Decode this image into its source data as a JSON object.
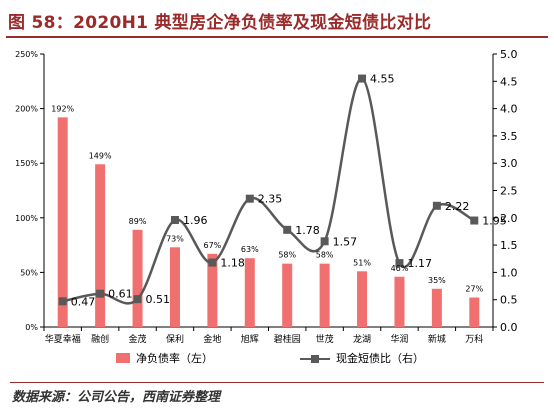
{
  "figure": {
    "title": "图 58：2020H1 典型房企净负债率及现金短债比对比",
    "source": "数据来源：公司公告，西南证券整理"
  },
  "colors": {
    "bar": "#f0706f",
    "line": "#595959",
    "title": "#9b2a2a",
    "axis": "#000000"
  },
  "chart_data": {
    "type": "bar",
    "categories": [
      "华夏幸福",
      "融创",
      "金茂",
      "保利",
      "金地",
      "旭辉",
      "碧桂园",
      "世茂",
      "龙湖",
      "华润",
      "新城",
      "万科"
    ],
    "series": [
      {
        "name": "净负债率（左）",
        "type": "bar",
        "axis": "left",
        "values": [
          192,
          149,
          89,
          73,
          67,
          63,
          58,
          58,
          51,
          46,
          35,
          27
        ],
        "data_labels": [
          "192%",
          "149%",
          "89%",
          "73%",
          "67%",
          "63%",
          "58%",
          "58%",
          "51%",
          "46%",
          "35%",
          "27%"
        ]
      },
      {
        "name": "现金短债比（右）",
        "type": "line",
        "axis": "right",
        "values": [
          0.47,
          0.61,
          0.51,
          1.96,
          1.18,
          2.35,
          1.78,
          1.57,
          4.55,
          1.17,
          2.22,
          1.95
        ],
        "data_labels": [
          "0.47",
          "0.61",
          "0.51",
          "1.96",
          "1.18",
          "2.35",
          "1.78",
          "1.57",
          "4.55",
          "1.17",
          "2.22",
          "1.95"
        ]
      }
    ],
    "y_left": {
      "ylim": [
        0,
        250
      ],
      "ticks": [
        0,
        50,
        100,
        150,
        200,
        250
      ],
      "tick_labels": [
        "0%",
        "50%",
        "100%",
        "150%",
        "200%",
        "250%"
      ]
    },
    "y_right": {
      "ylim": [
        0,
        5
      ],
      "ticks": [
        0,
        0.5,
        1,
        1.5,
        2,
        2.5,
        3,
        3.5,
        4,
        4.5,
        5
      ],
      "tick_labels": [
        "0.0",
        "0.5",
        "1.0",
        "1.5",
        "2.0",
        "2.5",
        "3.0",
        "3.5",
        "4.0",
        "4.5",
        "5.0"
      ]
    },
    "grid": false,
    "legend_position": "bottom"
  }
}
